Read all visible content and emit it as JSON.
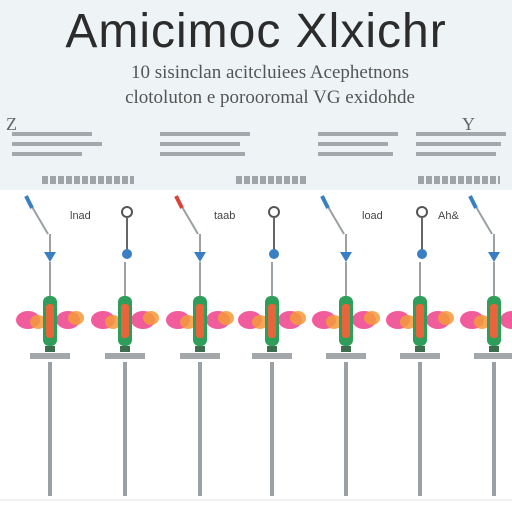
{
  "title": "Amicimoc Xlxichr",
  "subtitle_lines": [
    "10 sisinclan acitcluiees Acephetnons",
    "clotoluton e porooromal VG exidohde"
  ],
  "side_glyphs": [
    "Z",
    "Y"
  ],
  "lane_labels": [
    "lnad",
    "taab",
    "load",
    "Ah&"
  ],
  "colors": {
    "title": "#2c2c2c",
    "header_bg": "#eef4f6",
    "tube_green": "#2f9e5a",
    "tube_core": "#e8643a",
    "blob_pink": "#ef3f8c",
    "blob_orange": "#f39a3a",
    "needle_blue": "#3a7fc4",
    "needle_red": "#d9433a",
    "rod_grey": "#9aa0a4"
  }
}
